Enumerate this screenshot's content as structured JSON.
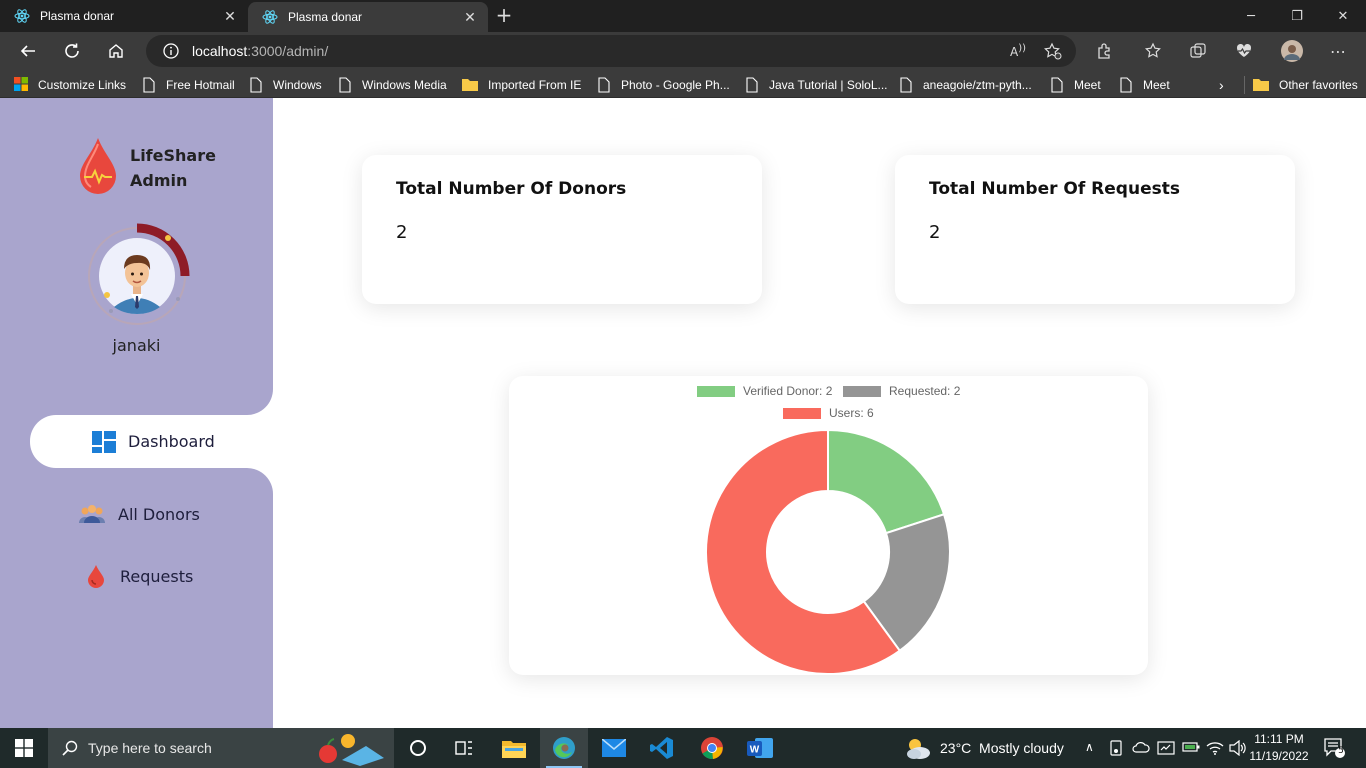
{
  "browser": {
    "tabs": [
      {
        "label": "Plasma donar",
        "active": false
      },
      {
        "label": "Plasma donar",
        "active": true
      }
    ],
    "url_host": "localhost",
    "url_path": ":3000/admin/",
    "favorites": [
      {
        "label": "Customize Links",
        "icon": "windows-logo-icon"
      },
      {
        "label": "Free Hotmail",
        "icon": "page-icon"
      },
      {
        "label": "Windows",
        "icon": "page-icon"
      },
      {
        "label": "Windows Media",
        "icon": "page-icon"
      },
      {
        "label": "Imported From IE",
        "icon": "folder-icon"
      },
      {
        "label": "Photo - Google Ph...",
        "icon": "page-icon"
      },
      {
        "label": "Java Tutorial | SoloL...",
        "icon": "page-icon"
      },
      {
        "label": "aneagoie/ztm-pyth...",
        "icon": "page-icon"
      },
      {
        "label": "Meet",
        "icon": "page-icon"
      },
      {
        "label": "Meet",
        "icon": "page-icon"
      }
    ],
    "other_favorites": "Other favorites"
  },
  "sidebar": {
    "brand_line1": "LifeShare",
    "brand_line2": "Admin",
    "username": "janaki",
    "nav": [
      {
        "label": "Dashboard",
        "icon": "dashboard-icon",
        "active": true
      },
      {
        "label": "All Donors",
        "icon": "users-group-icon",
        "active": false
      },
      {
        "label": "Requests",
        "icon": "blood-drop-icon",
        "active": false
      }
    ]
  },
  "stats": [
    {
      "title": "Total Number Of Donors",
      "value": "2"
    },
    {
      "title": "Total Number Of Requests",
      "value": "2"
    }
  ],
  "chart_data": {
    "type": "pie",
    "variant": "doughnut",
    "legend_position": "top",
    "series": [
      {
        "name": "Verified Donor",
        "value": 2,
        "color": "#82cd82",
        "legend": "Verified Donor: 2"
      },
      {
        "name": "Requested",
        "value": 2,
        "color": "#959595",
        "legend": "Requested: 2"
      },
      {
        "name": "Users",
        "value": 6,
        "color": "#f96a5d",
        "legend": "Users: 6"
      }
    ]
  },
  "taskbar": {
    "search_placeholder": "Type here to search",
    "weather": "23°C  Mostly cloudy",
    "time": "11:11 PM",
    "date": "11/19/2022",
    "notification_count": "5"
  },
  "colors": {
    "sidebar_bg": "#a9a5cd",
    "accent_red": "#e74c3c"
  }
}
